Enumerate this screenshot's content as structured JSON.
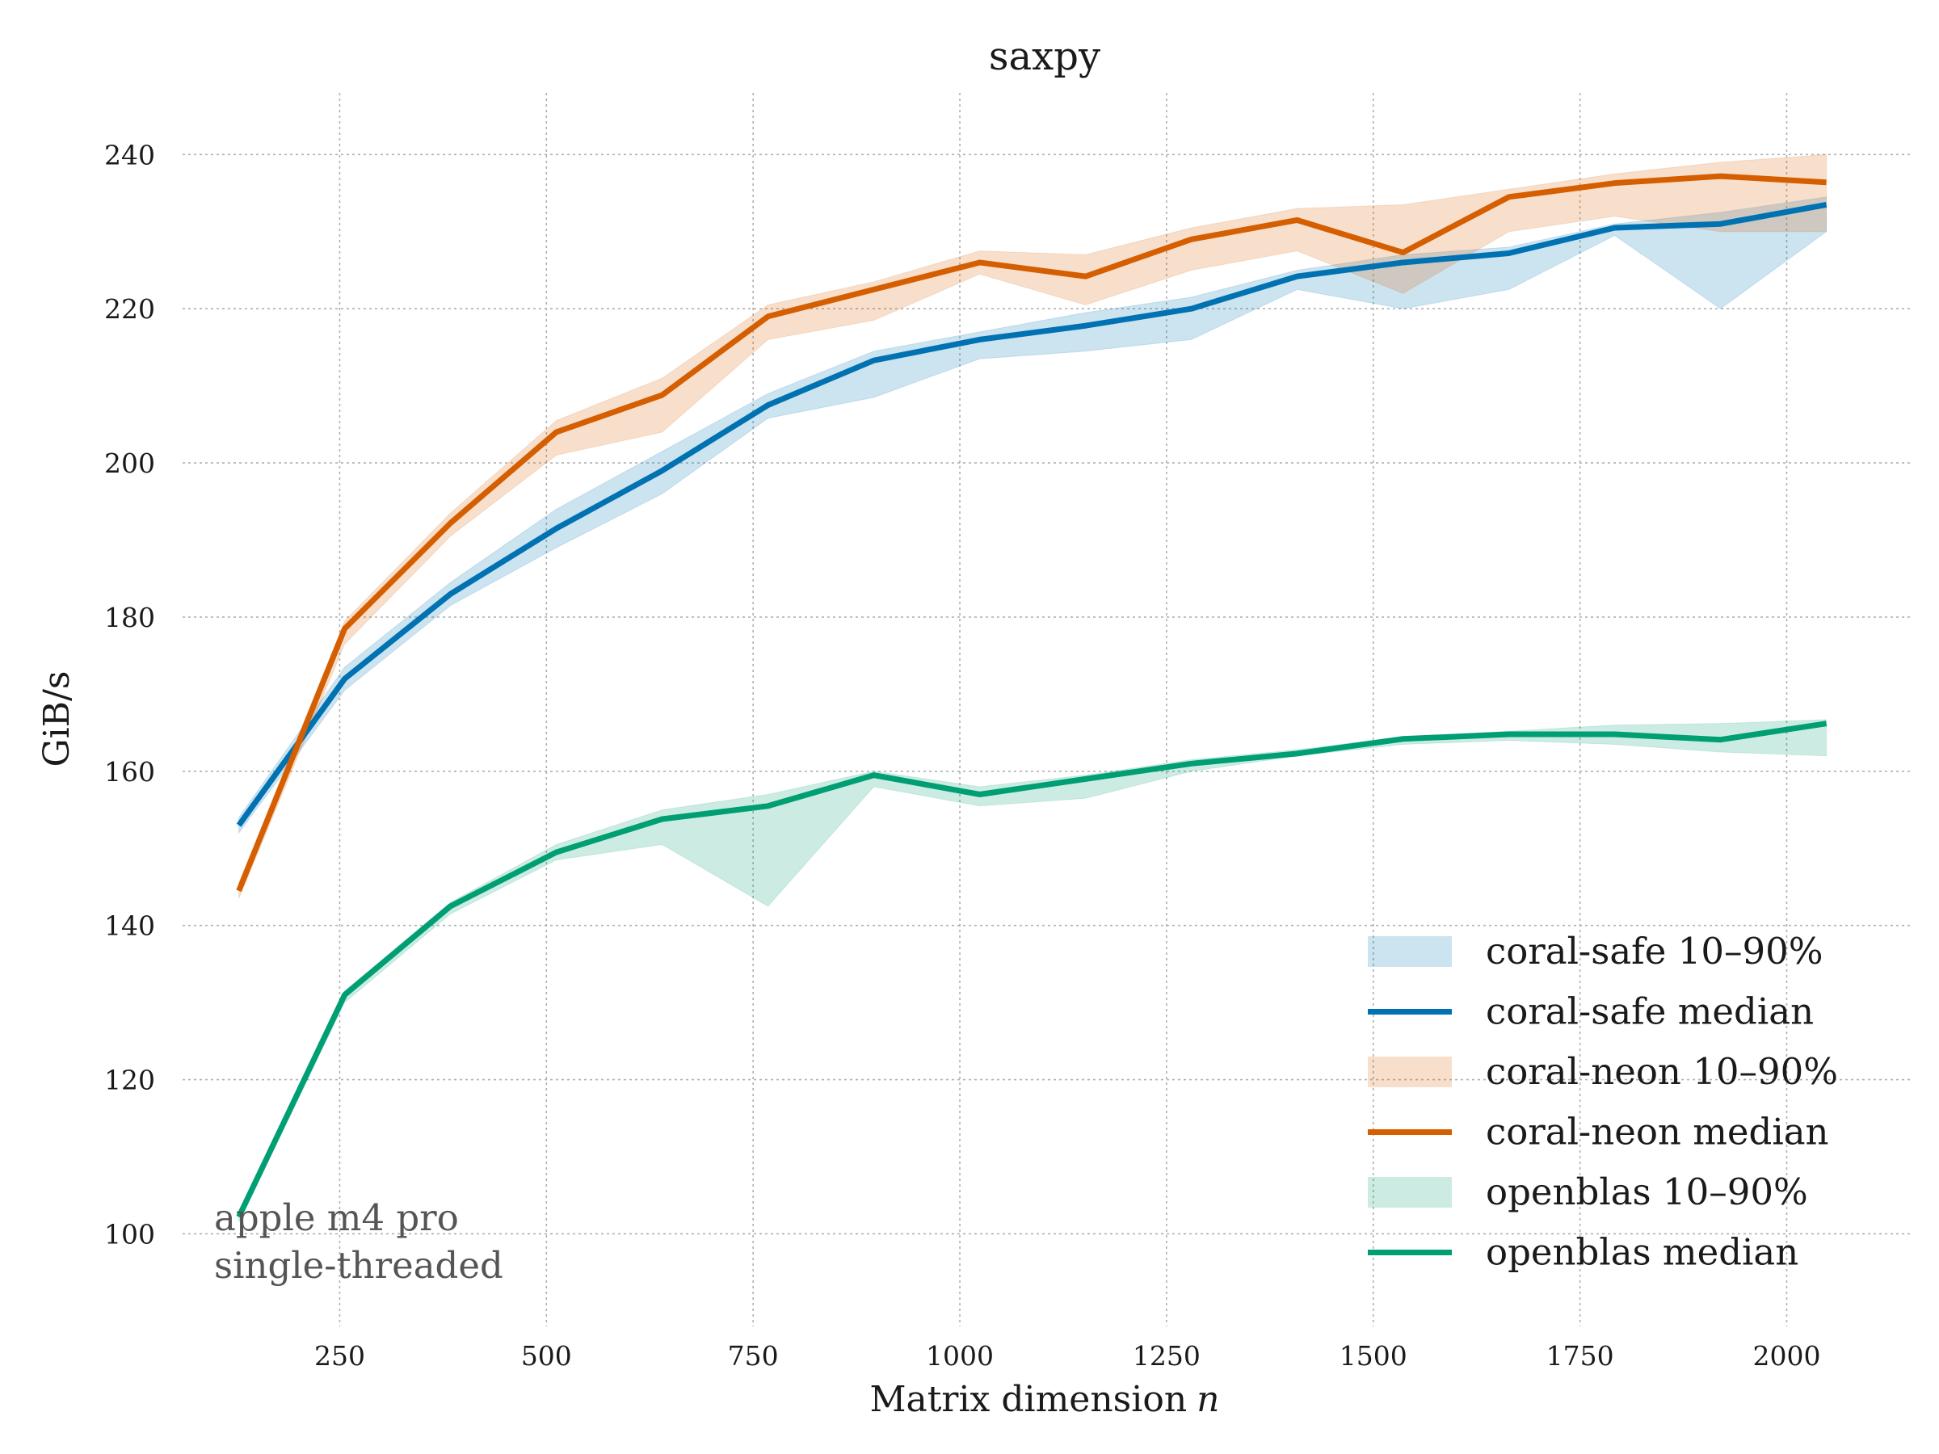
{
  "chart_data": {
    "type": "line",
    "title": "saxpy",
    "xlabel": "Matrix dimension",
    "xlabel_var": "n",
    "ylabel": "GiB/s",
    "xlim": [
      60,
      2150
    ],
    "ylim": [
      88,
      248
    ],
    "xticks": [
      250,
      500,
      750,
      1000,
      1250,
      1500,
      1750,
      2000
    ],
    "yticks": [
      100,
      120,
      140,
      160,
      180,
      200,
      220,
      240
    ],
    "grid": true,
    "legend_position": "lower-right",
    "annotation": [
      "apple m4 pro",
      "single-threaded"
    ],
    "x": [
      128,
      256,
      384,
      512,
      640,
      768,
      896,
      1024,
      1152,
      1280,
      1408,
      1536,
      1664,
      1792,
      1920,
      2048
    ],
    "series": [
      {
        "name": "coral-safe",
        "color": "#0072b2",
        "median": [
          153,
          172,
          183,
          191.5,
          199,
          207.5,
          213.3,
          216,
          217.8,
          220,
          224.2,
          226,
          227.2,
          230.5,
          231,
          233.5
        ],
        "p10": [
          152,
          170.5,
          181.5,
          189,
          196,
          205.8,
          208.5,
          213.5,
          214.5,
          216,
          222.5,
          220,
          222.5,
          229.5,
          220,
          230
        ],
        "p90": [
          154,
          173.5,
          184.5,
          194,
          201.5,
          209,
          214.5,
          217,
          219.5,
          221.5,
          225,
          227,
          228,
          231,
          232.5,
          234.5
        ]
      },
      {
        "name": "coral-neon",
        "color": "#d55e00",
        "median": [
          144.5,
          178.5,
          192.2,
          204,
          208.8,
          219,
          222.5,
          226,
          224.2,
          229,
          231.5,
          227.3,
          234.5,
          236.3,
          237.2,
          236.4
        ],
        "p10": [
          143.5,
          176.5,
          190.5,
          201,
          204,
          216,
          218.5,
          224.5,
          220.5,
          225,
          227.5,
          222,
          230,
          232,
          230,
          230
        ],
        "p90": [
          145.5,
          179.5,
          193.5,
          205.5,
          211,
          220.5,
          223.5,
          227.5,
          227,
          230.5,
          233,
          233.5,
          235.5,
          237.5,
          239,
          240
        ]
      },
      {
        "name": "openblas",
        "color": "#009e73",
        "median": [
          102.2,
          131,
          142.5,
          149.5,
          153.8,
          155.5,
          159.5,
          157,
          159,
          161,
          162.3,
          164.2,
          164.8,
          164.8,
          164.1,
          166.2
        ],
        "p10": [
          101.5,
          130,
          141.5,
          148.5,
          150.5,
          142.5,
          158,
          155.5,
          156.5,
          160,
          162,
          163.5,
          164,
          163.5,
          162.5,
          162
        ],
        "p90": [
          103,
          131.5,
          143,
          150.5,
          155,
          157,
          160,
          158,
          159.5,
          161.5,
          162.8,
          164.5,
          165.2,
          166,
          166.2,
          166.7
        ]
      }
    ],
    "legend": [
      {
        "label": "coral-safe 10–90%",
        "kind": "band",
        "series": 0
      },
      {
        "label": "coral-safe median",
        "kind": "line",
        "series": 0
      },
      {
        "label": "coral-neon 10–90%",
        "kind": "band",
        "series": 1
      },
      {
        "label": "coral-neon median",
        "kind": "line",
        "series": 1
      },
      {
        "label": "openblas 10–90%",
        "kind": "band",
        "series": 2
      },
      {
        "label": "openblas median",
        "kind": "line",
        "series": 2
      }
    ]
  }
}
